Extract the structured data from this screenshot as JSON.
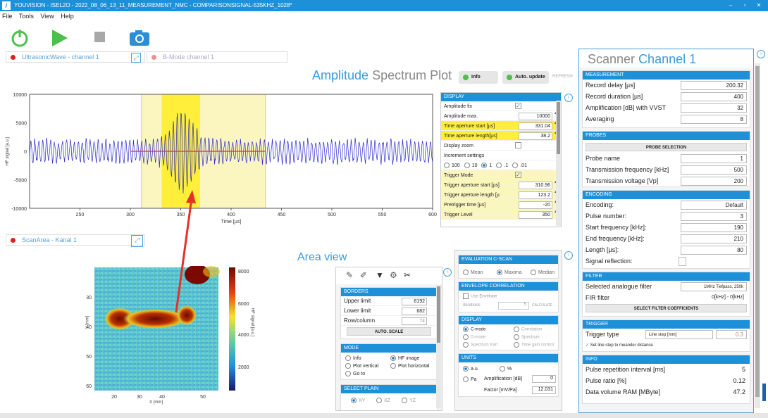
{
  "window": {
    "title": "YOUVISION - ISEL2O - 2022_08_06_13_11_MEASUREMENT_NMC - COMPARISONSIGNAL-535KHZ_1028*"
  },
  "menu": [
    "File",
    "Tools",
    "View",
    "Help"
  ],
  "colors": {
    "accent": "#1e90d8",
    "play": "#4cc04c",
    "signal": "#2a2acf",
    "aperture": "#ffef3a",
    "trigger_aperture": "#fbf5bf"
  },
  "tabs": {
    "top_left": "UltrasonicWave - channel 1",
    "top_right": "B-Mode channel 1",
    "bottom_left": "ScanArea - Kanal 1"
  },
  "amplitude": {
    "title_a": "Amplitude",
    "title_b": "Spectrum",
    "title_c": "Plot",
    "info_btn": "Info",
    "autoupdate_btn": "Auto. update",
    "refresh_btn": "REFRESH"
  },
  "chart_data": {
    "type": "line",
    "xlabel": "Time [µs]",
    "ylabel": "HF signal [a.u.]",
    "xlim": [
      200,
      600
    ],
    "ylim": [
      -10000,
      10000
    ],
    "xticks": [
      250,
      300,
      350,
      400,
      450,
      500,
      550,
      600
    ],
    "yticks": [
      10000,
      5000,
      0,
      -5000,
      -10000
    ],
    "time_aperture": [
      331.04,
      369.2
    ],
    "trigger_aperture": [
      310.96,
      434.16
    ]
  },
  "display_panel": {
    "header": "DISPLAY",
    "rows": [
      {
        "label": "Amplitude fix",
        "checked": true
      },
      {
        "label": "Amplitude max.",
        "value": "10000"
      },
      {
        "label": "Time aperture start [µs]",
        "value": "331.04",
        "hl": true
      },
      {
        "label": "Time aperture length[µs]",
        "value": "38.2",
        "hl": true
      },
      {
        "label": "Display zoom",
        "checked": false
      },
      {
        "label": "Increment settings"
      },
      {
        "label": "radios",
        "options": [
          "100",
          "10",
          "1",
          ".1",
          ".01"
        ],
        "selected": 2
      },
      {
        "label": "Trigger Mode",
        "checked": true,
        "hl2": true
      },
      {
        "label": "Trigger aperture start [µs]",
        "value": "310.96",
        "hl2": true
      },
      {
        "label": "Trigger aperture length [µ",
        "value": "123.2",
        "hl2": true
      },
      {
        "label": "Pretrigger time [µs]",
        "value": "-20",
        "hl2": true
      },
      {
        "label": "Trigger Level",
        "value": "350",
        "hl2": true
      }
    ]
  },
  "scan": {
    "ylabel": "Y [mm]",
    "xlabel": "X [mm]",
    "yticks": [
      "30",
      "40",
      "50",
      "60"
    ],
    "xticks": [
      "20",
      "30",
      "40",
      "50"
    ],
    "cbar_ticks": [
      "8000",
      "6000",
      "4000",
      "2000"
    ],
    "cbar_label": "HF signal [a.u.]"
  },
  "area": {
    "title": "Area view",
    "borders": {
      "header": "BORDERS",
      "upper": "Upper limit",
      "upper_v": "8192",
      "lower": "Lower limit",
      "lower_v": "682",
      "rowcol": "Row/column",
      "rowcol_v": "74",
      "btn": "AUTO. SCALE"
    },
    "mode": {
      "header": "MODE",
      "opts": [
        "Info",
        "HF image",
        "Plot vertical",
        "Plot horizontal",
        "Go to"
      ]
    },
    "select": {
      "header": "SELECT PLAIN",
      "opts": [
        "XY",
        "XZ",
        "YZ"
      ]
    },
    "eval": {
      "header": "EVALUATION C-SCAN",
      "opts": [
        "Mean",
        "Maxima",
        "Median"
      ]
    },
    "env": {
      "header": "ENVELOPE CORRELATION",
      "use": "Use Envelope",
      "iter": "Iterations",
      "iter_v": "5",
      "btn": "CALCULATE"
    },
    "disp": {
      "header": "DISPLAY",
      "opts": [
        "C-mode",
        "Correlation",
        "D-mode",
        "Spectrum",
        "Spectrum Kart",
        "Time gain control"
      ]
    },
    "units": {
      "header": "UNITS",
      "au": "a.u.",
      "pct": "%",
      "pa": "Pa",
      "amp": "Amplification [dB]",
      "amp_v": "0",
      "fac": "Factor [mV/Pa]",
      "fac_v": "12.031"
    }
  },
  "scanner": {
    "title_a": "Scanner",
    "title_b": "Channel 1",
    "measurement": {
      "header": "MEASUREMENT",
      "rows": [
        [
          "Record delay [µs]",
          "200.32"
        ],
        [
          "Record duration [µs]",
          "400"
        ],
        [
          "Amplification [dB] with VVST",
          "32"
        ],
        [
          "Averaging",
          "8"
        ]
      ]
    },
    "probes": {
      "header": "PROBES",
      "btn": "PROBE SELECTION",
      "rows": [
        [
          "Probe name",
          "1"
        ],
        [
          "Transmission frequency [kHz]",
          "500"
        ],
        [
          "Transmission voltage [Vp]",
          "200"
        ]
      ]
    },
    "encoding": {
      "header": "ENCODING",
      "rows": [
        [
          "Encoding:",
          "Default"
        ],
        [
          "Pulse number:",
          "3"
        ],
        [
          "Start frequency [kHz]:",
          "190"
        ],
        [
          "End frequency [kHz]:",
          "210"
        ],
        [
          "Length [µs]:",
          "80"
        ],
        [
          "Signal reflection:",
          ""
        ]
      ]
    },
    "filter": {
      "header": "FILTER",
      "sel": "Selected analogue filter",
      "sel_v": "1MHz Tiefpass, 250k",
      "fir": "FIR filter",
      "fir_v": "0[kHz] - 0[kHz]",
      "btn": "SELECT FILTER COEFFICIENTS"
    },
    "trigger": {
      "header": "TRIGGER",
      "type": "Trigger type",
      "type_v": "Line step [mm]",
      "num": "0.3",
      "step": "Set line step to meander distance"
    },
    "info": {
      "header": "INFO",
      "rows": [
        [
          "Pulse repetition interval [ms]",
          "5"
        ],
        [
          "Pulse ratio [%]",
          "0.12"
        ],
        [
          "Data volume RAM [MByte]",
          "47.2"
        ]
      ]
    }
  }
}
